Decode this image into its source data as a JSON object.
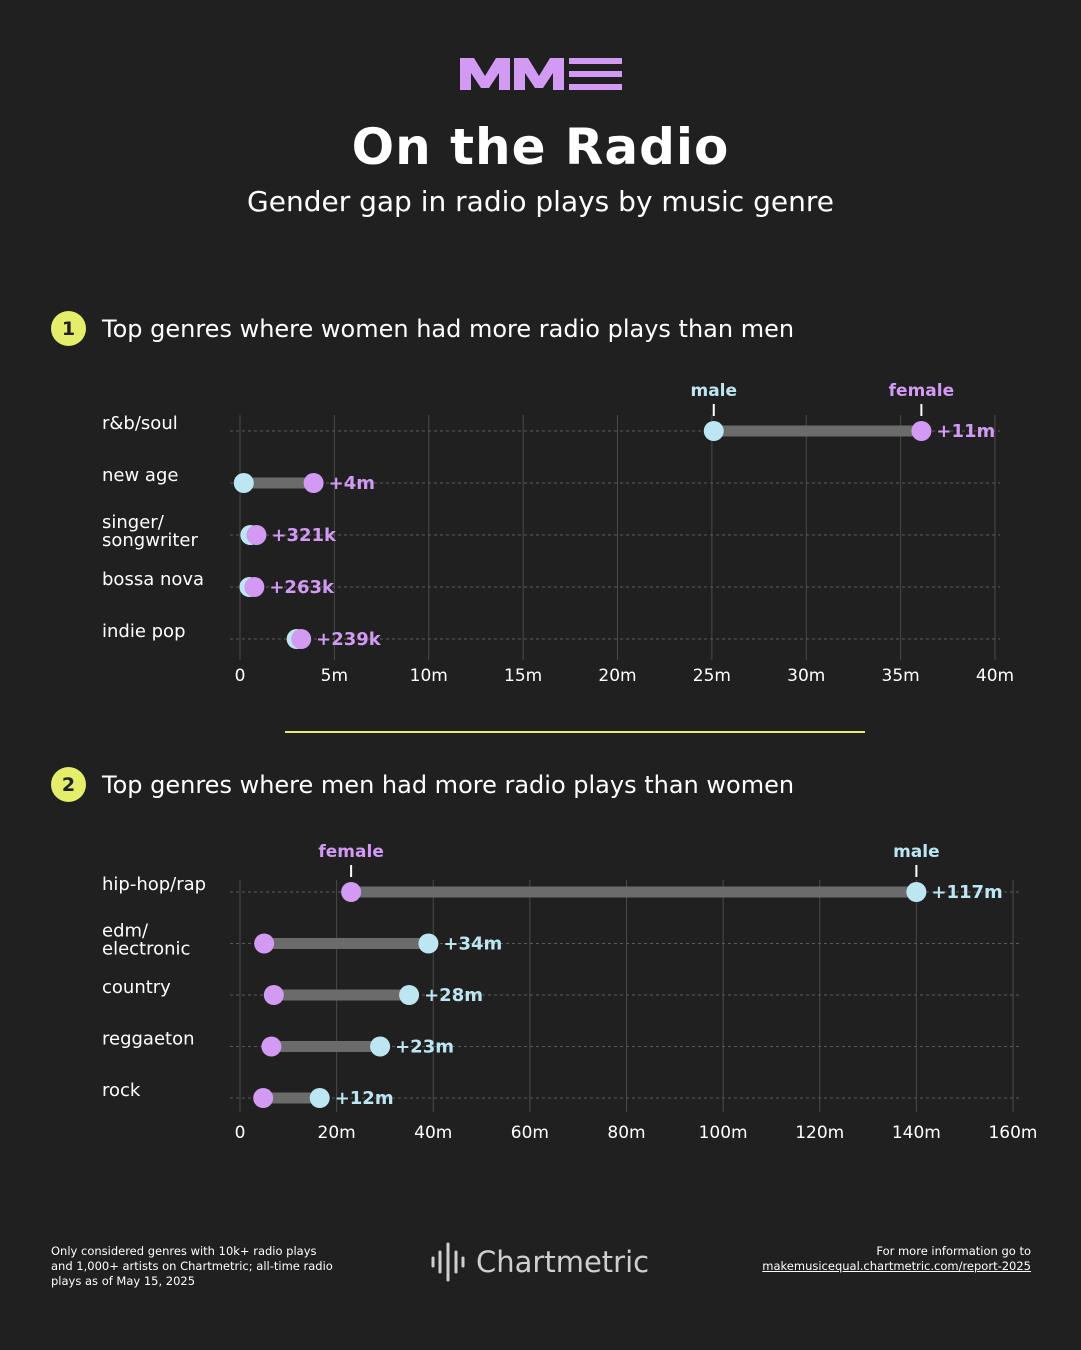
{
  "header": {
    "logo_text": "MME",
    "title": "On the Radio",
    "subtitle": "Gender gap in radio plays by music genre"
  },
  "colors": {
    "background": "#202020",
    "female": "#d29af3",
    "male": "#bde6f3",
    "accent": "#e4ee6b",
    "bar": "#6b6b6b"
  },
  "section1": {
    "number": "1",
    "title": "Top genres where women had more radio plays than men"
  },
  "section2": {
    "number": "2",
    "title": "Top genres where men had more radio plays than women"
  },
  "chart_data": [
    {
      "type": "dumbbell",
      "xlim": [
        0,
        40
      ],
      "unit": "millions of radio plays",
      "x_ticks": [
        0,
        5,
        10,
        15,
        20,
        25,
        30,
        35,
        40
      ],
      "x_tick_labels": [
        "0",
        "5m",
        "10m",
        "15m",
        "20m",
        "25m",
        "30m",
        "35m",
        "40m"
      ],
      "legend": {
        "male": "male",
        "female": "female"
      },
      "categories": [
        {
          "label": [
            "r&b/soul"
          ],
          "male": 25.1,
          "female": 36.1,
          "gap": "+11m",
          "leader": "female"
        },
        {
          "label": [
            "new age"
          ],
          "male": 0.2,
          "female": 3.9,
          "gap": "+4m",
          "leader": "female"
        },
        {
          "label": [
            "singer/",
            "songwriter"
          ],
          "male": 0.55,
          "female": 0.87,
          "gap": "+321k",
          "leader": "female"
        },
        {
          "label": [
            "bossa nova"
          ],
          "male": 0.5,
          "female": 0.76,
          "gap": "+263k",
          "leader": "female"
        },
        {
          "label": [
            "indie pop"
          ],
          "male": 3.0,
          "female": 3.24,
          "gap": "+239k",
          "leader": "female"
        }
      ],
      "grid": true
    },
    {
      "type": "dumbbell",
      "xlim": [
        0,
        160
      ],
      "unit": "millions of radio plays",
      "x_ticks": [
        0,
        20,
        40,
        60,
        80,
        100,
        120,
        140,
        160
      ],
      "x_tick_labels": [
        "0",
        "20m",
        "40m",
        "60m",
        "80m",
        "100m",
        "120m",
        "140m",
        "160m"
      ],
      "legend": {
        "male": "male",
        "female": "female"
      },
      "categories": [
        {
          "label": [
            "hip-hop/rap"
          ],
          "male": 140,
          "female": 23,
          "gap": "+117m",
          "leader": "male"
        },
        {
          "label": [
            "edm/",
            "electronic"
          ],
          "male": 39,
          "female": 5,
          "gap": "+34m",
          "leader": "male"
        },
        {
          "label": [
            "country"
          ],
          "male": 35,
          "female": 7,
          "gap": "+28m",
          "leader": "male"
        },
        {
          "label": [
            "reggaeton"
          ],
          "male": 29,
          "female": 6.5,
          "gap": "+23m",
          "leader": "male"
        },
        {
          "label": [
            "rock"
          ],
          "male": 16.5,
          "female": 4.8,
          "gap": "+12m",
          "leader": "male"
        }
      ],
      "grid": true
    }
  ],
  "footer": {
    "note": "Only considered genres with 10k+ radio plays\nand 1,000+ artists on Chartmetric; all-time radio\nplays as of May 15, 2025",
    "brand": "Chartmetric",
    "more_label": "For more information go to",
    "more_link": "makemusicequal.chartmetric.com/report-2025"
  }
}
